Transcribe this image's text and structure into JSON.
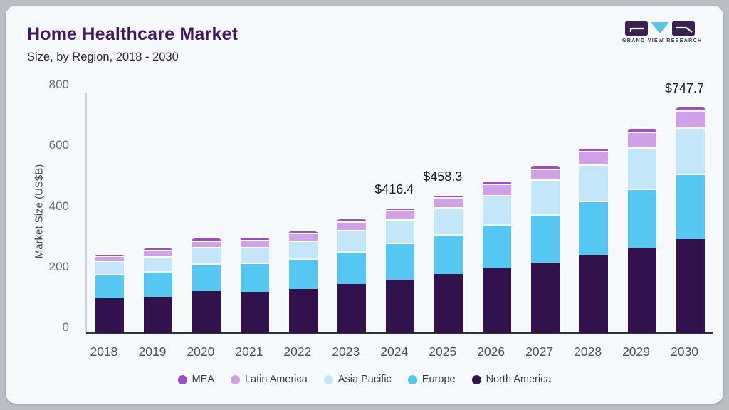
{
  "page": {
    "title": "Home Healthcare Market",
    "subtitle": "Size, by Region, 2018 - 2030",
    "logo_text": "GRAND VIEW RESEARCH"
  },
  "colors": {
    "page_bg": "#b9bfc5",
    "card_bg": "#f6f9fb",
    "title_text": "#431760",
    "baseline": "#2e323a",
    "axis_line": "#ccd2d9",
    "logo_dark": "#3b2052",
    "logo_blue": "#57c5ea"
  },
  "chart_data": {
    "type": "bar",
    "stacked": true,
    "title": "Home Healthcare Market",
    "subtitle": "Size, by Region, 2018 - 2030",
    "xlabel": "",
    "ylabel": "Market Size (US$B)",
    "ylim": [
      0,
      800
    ],
    "yticks": [
      0,
      200,
      400,
      600,
      800
    ],
    "grid": false,
    "legend_position": "bottom",
    "categories": [
      "2018",
      "2019",
      "2020",
      "2021",
      "2022",
      "2023",
      "2024",
      "2025",
      "2026",
      "2027",
      "2028",
      "2029",
      "2030"
    ],
    "series": [
      {
        "name": "North America",
        "color": "#31124c",
        "values": [
          115,
          120,
          139,
          137,
          146,
          163,
          175.4,
          194.3,
          213,
          233,
          257,
          281,
          309.7
        ]
      },
      {
        "name": "Europe",
        "color": "#55c7f1",
        "values": [
          79,
          85,
          91,
          95,
          100,
          108,
          123,
          132,
          146,
          160,
          179,
          196,
          216
        ]
      },
      {
        "name": "Asia Pacific",
        "color": "#c3e6f8",
        "values": [
          45,
          49,
          53,
          51,
          60,
          69,
          77,
          89,
          97,
          113,
          121,
          136,
          152
        ]
      },
      {
        "name": "Latin America",
        "color": "#d0a1e8",
        "values": [
          16,
          21,
          23,
          25,
          25,
          28,
          31,
          33,
          37,
          37,
          43,
          50,
          57
        ]
      },
      {
        "name": "MEA",
        "color": "#a14bc9",
        "values": [
          9,
          9,
          10,
          11,
          10,
          11,
          10,
          10,
          12,
          13,
          13,
          14,
          13
        ]
      }
    ],
    "totals": [
      264,
      284,
      316,
      319,
      341,
      379,
      416.4,
      458.3,
      505,
      556,
      613,
      677,
      747.7
    ],
    "legend_order": [
      "MEA",
      "Latin America",
      "Asia Pacific",
      "Europe",
      "North America"
    ],
    "annotations": [
      {
        "category": "2024",
        "label": "$416.4"
      },
      {
        "category": "2025",
        "label": "$458.3"
      },
      {
        "category": "2030",
        "label": "$747.7"
      }
    ]
  }
}
